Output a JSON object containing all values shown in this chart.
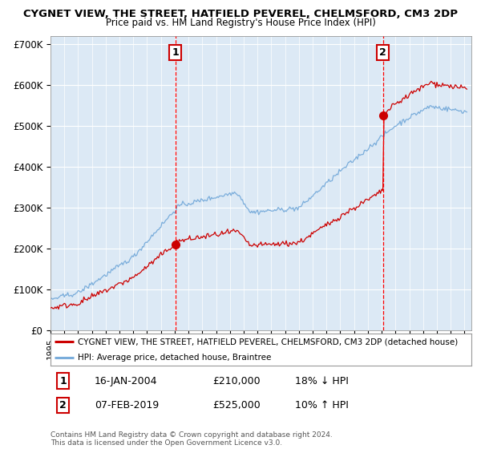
{
  "title": "CYGNET VIEW, THE STREET, HATFIELD PEVEREL, CHELMSFORD, CM3 2DP",
  "subtitle": "Price paid vs. HM Land Registry's House Price Index (HPI)",
  "ylabel_ticks": [
    "£0",
    "£100K",
    "£200K",
    "£300K",
    "£400K",
    "£500K",
    "£600K",
    "£700K"
  ],
  "ytick_values": [
    0,
    100000,
    200000,
    300000,
    400000,
    500000,
    600000,
    700000
  ],
  "ylim": [
    0,
    720000
  ],
  "xlim_start": 1995.0,
  "xlim_end": 2025.5,
  "background_color": "#dce9f5",
  "red_line_color": "#cc0000",
  "blue_line_color": "#7aaddb",
  "marker1_x": 2004.04,
  "marker1_y": 210000,
  "marker2_x": 2019.09,
  "marker2_y": 525000,
  "vline_color": "#ff0000",
  "legend_line1": "CYGNET VIEW, THE STREET, HATFIELD PEVEREL, CHELMSFORD, CM3 2DP (detached house)",
  "legend_line2": "HPI: Average price, detached house, Braintree",
  "footer1": "Contains HM Land Registry data © Crown copyright and database right 2024.",
  "footer2": "This data is licensed under the Open Government Licence v3.0."
}
